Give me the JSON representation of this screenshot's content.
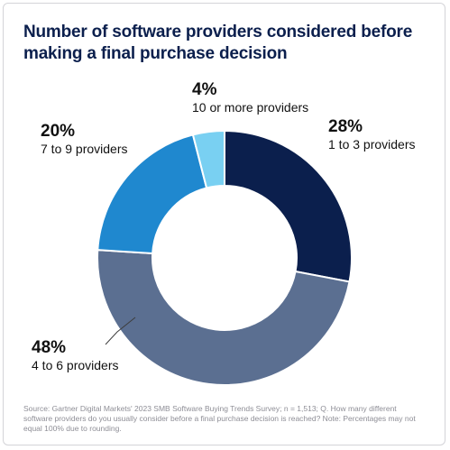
{
  "title": "Number of software providers considered before making a final purchase decision",
  "chart_data": {
    "type": "pie",
    "title": "Number of software providers considered before making a final purchase decision",
    "donut": true,
    "slices": [
      {
        "label": "1 to 3 providers",
        "value": 28,
        "display": "28%",
        "color": "#0b1f4d"
      },
      {
        "label": "4 to 6 providers",
        "value": 48,
        "display": "48%",
        "color": "#5b6f91"
      },
      {
        "label": "7 to 9 providers",
        "value": 20,
        "display": "20%",
        "color": "#1f88cf"
      },
      {
        "label": "10 or more providers",
        "value": 4,
        "display": "4%",
        "color": "#79d0f2"
      }
    ]
  },
  "source": "Source: Gartner Digital Markets' 2023 SMB Software Buying Trends Survey; n = 1,513; Q. How many different software providers do you usually consider before a final purchase decision is reached? Note: Percentages may not equal 100% due to rounding."
}
